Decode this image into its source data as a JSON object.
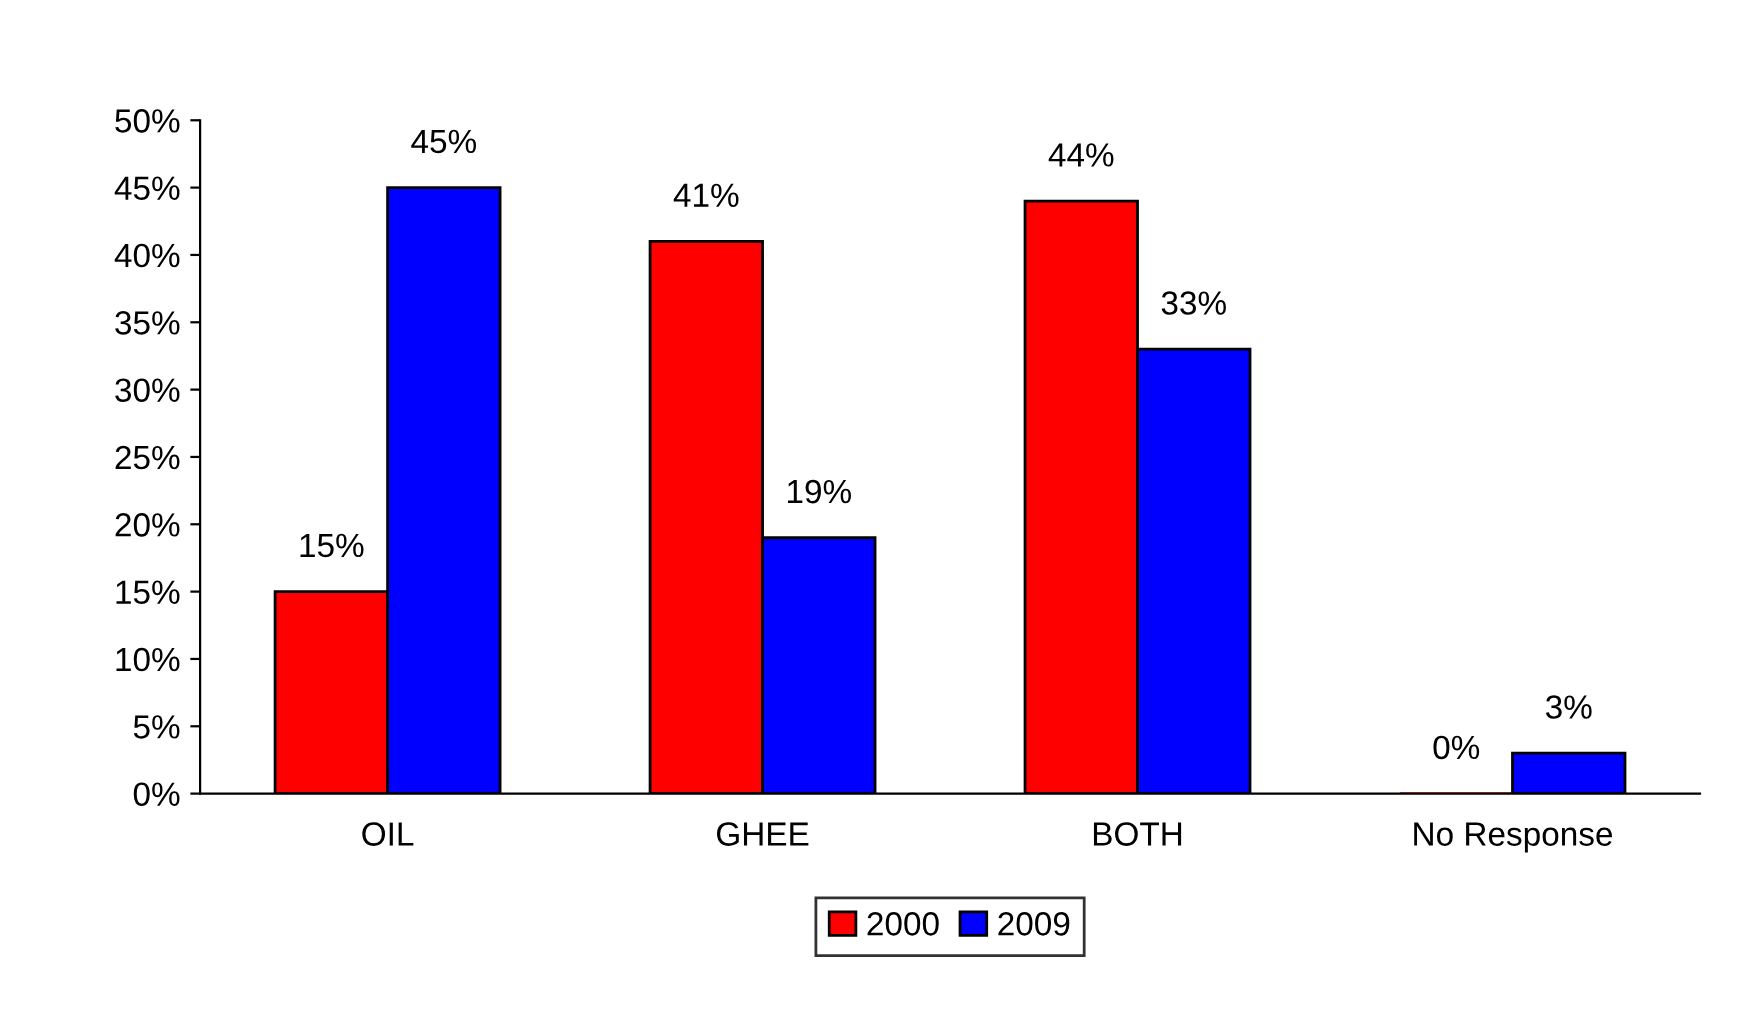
{
  "chart_data": {
    "type": "bar",
    "categories": [
      "OIL",
      "GHEE",
      "BOTH",
      "No Response"
    ],
    "series": [
      {
        "name": "2000",
        "color": "#ff0000",
        "values": [
          15,
          41,
          44,
          0
        ],
        "value_labels": [
          "15%",
          "41%",
          "44%",
          "0%"
        ]
      },
      {
        "name": "2009",
        "color": "#0000ff",
        "values": [
          45,
          19,
          33,
          3
        ],
        "value_labels": [
          "45%",
          "19%",
          "33%",
          "3%"
        ]
      }
    ],
    "ylim": [
      0,
      50
    ],
    "yticks": [
      {
        "value": 0,
        "label": "0%"
      },
      {
        "value": 5,
        "label": "5%"
      },
      {
        "value": 10,
        "label": "10%"
      },
      {
        "value": 15,
        "label": "15%"
      },
      {
        "value": 20,
        "label": "20%"
      },
      {
        "value": 25,
        "label": "25%"
      },
      {
        "value": 30,
        "label": "30%"
      },
      {
        "value": 35,
        "label": "35%"
      },
      {
        "value": 40,
        "label": "40%"
      },
      {
        "value": 45,
        "label": "45%"
      },
      {
        "value": 50,
        "label": "50%"
      }
    ],
    "grid": false,
    "legend": "bottom"
  }
}
